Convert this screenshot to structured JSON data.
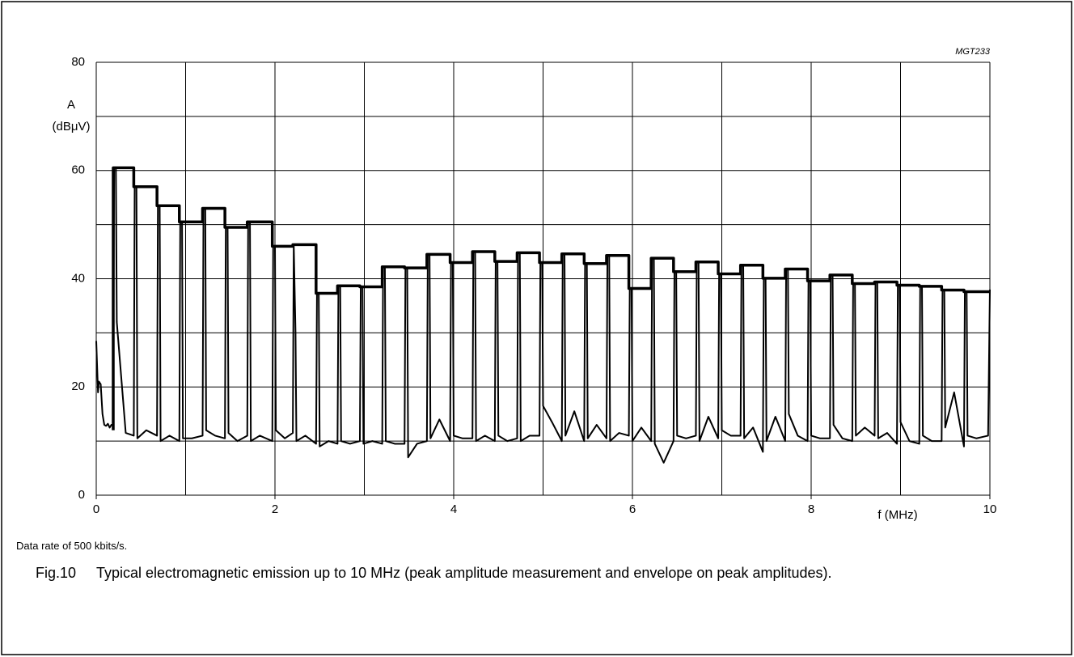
{
  "chart_data": {
    "type": "line",
    "annotation": "MGT233",
    "y_label": [
      "A",
      "(dBμV)"
    ],
    "x_label": "f (MHz)",
    "note": "Data rate of 500 kbits/s.",
    "figure_label": "Fig.10",
    "caption": "Typical electromagnetic emission up to 10 MHz (peak amplitude measurement and envelope on peak amplitudes).",
    "xlim": [
      0,
      10
    ],
    "xticks": [
      0,
      2,
      4,
      6,
      8,
      10
    ],
    "xminor_ticks": [
      1,
      3,
      5,
      7,
      9
    ],
    "ylim": [
      0,
      80
    ],
    "yticks": [
      0,
      20,
      40,
      60,
      80
    ],
    "yminor_ticks": [
      10,
      30,
      50,
      70
    ],
    "grid": true,
    "series": [
      {
        "color": "#000000",
        "line_width": 2,
        "x": [
          0,
          0.02,
          0.03,
          0.05,
          0.07,
          0.09,
          0.11,
          0.13,
          0.15,
          0.17,
          0.19,
          0.2,
          0.22,
          0.23,
          0.33,
          0.42,
          0.43,
          0.45,
          0.46,
          0.56,
          0.68,
          0.69,
          0.71,
          0.72,
          0.82,
          0.93,
          0.94,
          0.96,
          0.97,
          1.07,
          1.19,
          1.2,
          1.22,
          1.23,
          1.33,
          1.44,
          1.45,
          1.47,
          1.48,
          1.58,
          1.69,
          1.7,
          1.72,
          1.73,
          1.83,
          1.97,
          1.98,
          2,
          2.01,
          2.11,
          2.2,
          2.21,
          2.23,
          2.24,
          2.34,
          2.46,
          2.47,
          2.49,
          2.5,
          2.6,
          2.7,
          2.71,
          2.73,
          2.74,
          2.84,
          2.95,
          2.96,
          2.98,
          2.99,
          3.09,
          3.2,
          3.21,
          3.23,
          3.24,
          3.34,
          3.45,
          3.46,
          3.48,
          3.49,
          3.59,
          3.7,
          3.71,
          3.73,
          3.74,
          3.84,
          3.96,
          3.97,
          3.99,
          4,
          4.1,
          4.21,
          4.22,
          4.24,
          4.25,
          4.35,
          4.46,
          4.47,
          4.49,
          4.5,
          4.6,
          4.71,
          4.72,
          4.74,
          4.75,
          4.85,
          4.96,
          4.97,
          4.99,
          5,
          5.1,
          5.21,
          5.22,
          5.24,
          5.25,
          5.35,
          5.46,
          5.47,
          5.49,
          5.5,
          5.6,
          5.71,
          5.72,
          5.74,
          5.75,
          5.85,
          5.96,
          5.97,
          5.99,
          6,
          6.1,
          6.21,
          6.22,
          6.24,
          6.25,
          6.35,
          6.46,
          6.47,
          6.49,
          6.5,
          6.6,
          6.71,
          6.72,
          6.74,
          6.75,
          6.85,
          6.96,
          6.97,
          6.99,
          7,
          7.1,
          7.21,
          7.22,
          7.24,
          7.25,
          7.35,
          7.46,
          7.47,
          7.49,
          7.5,
          7.6,
          7.71,
          7.72,
          7.74,
          7.75,
          7.85,
          7.96,
          7.97,
          7.99,
          8,
          8.1,
          8.21,
          8.22,
          8.24,
          8.25,
          8.35,
          8.46,
          8.47,
          8.49,
          8.5,
          8.6,
          8.71,
          8.72,
          8.74,
          8.75,
          8.85,
          8.96,
          8.97,
          8.99,
          9,
          9.1,
          9.21,
          9.22,
          9.24,
          9.25,
          9.35,
          9.46,
          9.47,
          9.49,
          9.5,
          9.6,
          9.71,
          9.72,
          9.74,
          9.75,
          9.85,
          9.98,
          10
        ],
        "values": [
          28.5,
          19,
          21,
          20.5,
          15,
          13,
          12.8,
          13.2,
          12.5,
          13,
          13,
          60.5,
          60.5,
          32,
          11.5,
          11,
          57,
          57,
          10.5,
          12,
          11,
          53.5,
          53.5,
          10,
          11,
          10,
          50.5,
          50.5,
          10.5,
          10.5,
          11,
          53,
          53,
          12,
          11,
          10.5,
          49.5,
          49.5,
          11.5,
          10,
          11,
          50.5,
          50.5,
          10,
          11,
          10,
          46,
          46,
          12,
          10.5,
          11.5,
          46.3,
          30,
          10,
          11,
          9.5,
          37.3,
          37.3,
          9,
          10,
          9.5,
          38.7,
          38.7,
          10,
          9.5,
          10,
          38.5,
          38.5,
          9.5,
          10,
          9.5,
          42.2,
          42.2,
          10,
          9.5,
          9.5,
          42,
          42,
          7,
          9.5,
          10,
          44.5,
          44.5,
          10.5,
          14,
          10,
          43,
          43,
          11,
          10.5,
          10.5,
          45,
          45,
          10,
          11,
          10,
          43.2,
          43.2,
          11,
          10,
          10.5,
          44.8,
          44.8,
          10,
          11,
          11,
          43,
          43,
          16.5,
          13.5,
          10,
          44.6,
          44.6,
          11,
          15.5,
          10,
          42.8,
          42.8,
          10.5,
          13,
          10.5,
          44.3,
          44.3,
          10,
          11.5,
          11,
          38.2,
          38.2,
          10,
          12.5,
          10,
          43.8,
          43.8,
          9.5,
          6,
          10,
          41.3,
          41.3,
          11,
          10.5,
          11,
          43.1,
          43.1,
          10,
          14.5,
          10.5,
          40.9,
          40.9,
          12,
          11,
          11,
          42.5,
          42.5,
          10.5,
          12.5,
          8,
          40.1,
          40.1,
          10,
          14.5,
          10,
          41.8,
          41.8,
          15,
          11,
          10,
          39.6,
          39.6,
          11,
          10.5,
          10.5,
          40.7,
          40.7,
          13,
          10.5,
          10,
          39.1,
          39.1,
          11,
          12.5,
          11,
          39.4,
          39.4,
          10.5,
          11.5,
          9.5,
          38.8,
          38.8,
          13.5,
          10,
          9.5,
          38.6,
          38.6,
          11,
          10,
          10,
          37.9,
          37.9,
          12.5,
          19,
          9,
          37.6,
          37.6,
          11,
          10.5,
          11,
          38
        ]
      },
      {
        "color": "#000000",
        "line_width": 3.5,
        "x": [
          0.19,
          0.19,
          0.42,
          0.42,
          0.68,
          0.68,
          0.93,
          0.93,
          1.19,
          1.19,
          1.44,
          1.44,
          1.69,
          1.69,
          1.97,
          1.97,
          2.2,
          2.2,
          2.46,
          2.46,
          2.7,
          2.7,
          2.95,
          2.95,
          3.2,
          3.2,
          3.45,
          3.45,
          3.7,
          3.7,
          3.96,
          3.96,
          4.21,
          4.21,
          4.46,
          4.46,
          4.71,
          4.71,
          4.96,
          4.96,
          5.21,
          5.21,
          5.46,
          5.46,
          5.71,
          5.71,
          5.96,
          5.96,
          6.21,
          6.21,
          6.46,
          6.46,
          6.71,
          6.71,
          6.96,
          6.96,
          7.21,
          7.21,
          7.46,
          7.46,
          7.71,
          7.71,
          7.96,
          7.96,
          8.21,
          8.21,
          8.46,
          8.46,
          8.71,
          8.71,
          8.96,
          8.96,
          9.21,
          9.21,
          9.46,
          9.46,
          9.71,
          9.71,
          10
        ],
        "values": [
          12,
          60.5,
          60.5,
          57,
          57,
          53.5,
          53.5,
          50.5,
          50.5,
          53,
          53,
          49.5,
          49.5,
          50.5,
          50.5,
          46,
          46,
          46.3,
          46.3,
          37.3,
          37.3,
          38.7,
          38.7,
          38.5,
          38.5,
          42.2,
          42.2,
          42,
          42,
          44.5,
          44.5,
          43,
          43,
          45,
          45,
          43.2,
          43.2,
          44.8,
          44.8,
          43,
          43,
          44.6,
          44.6,
          42.8,
          42.8,
          44.3,
          44.3,
          38.2,
          38.2,
          43.8,
          43.8,
          41.3,
          41.3,
          43.1,
          43.1,
          40.9,
          40.9,
          42.5,
          42.5,
          40.1,
          40.1,
          41.8,
          41.8,
          39.6,
          39.6,
          40.7,
          40.7,
          39.1,
          39.1,
          39.4,
          39.4,
          38.8,
          38.8,
          38.6,
          38.6,
          37.9,
          37.9,
          37.6,
          37.6
        ]
      }
    ]
  }
}
